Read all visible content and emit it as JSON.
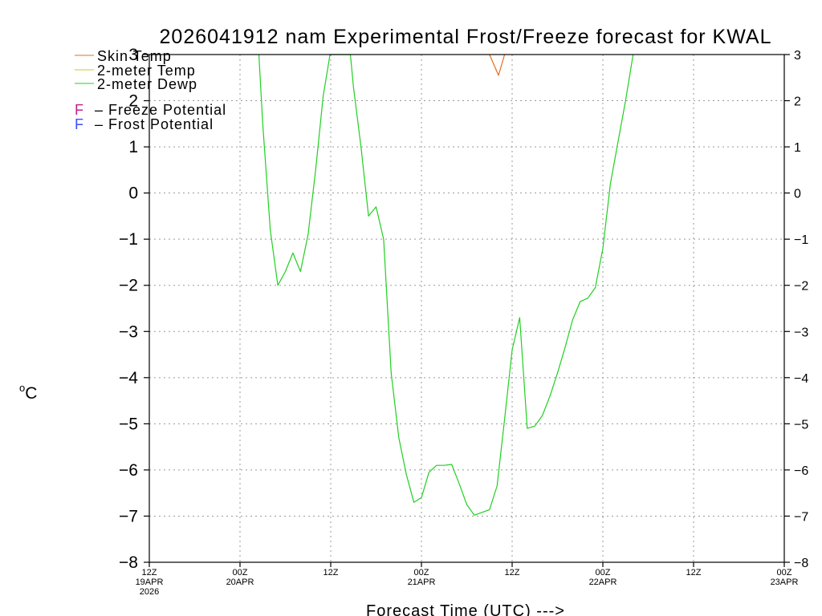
{
  "chart_data": {
    "type": "line",
    "title": "2026041912 nam Experimental Frost/Freeze forecast for KWAL",
    "xlabel": "Forecast Time (UTC) --->",
    "ylabel": "°C",
    "ylabel_unit": "C",
    "ylabel_degree": "o",
    "ylim": [
      -8,
      3
    ],
    "xlim": [
      0,
      84
    ],
    "y_ticks": [
      3,
      2,
      1,
      0,
      -1,
      -2,
      -3,
      -4,
      -5,
      -6,
      -7,
      -8
    ],
    "x_ticks": [
      {
        "h": 0,
        "l1": "12Z",
        "l2": "19APR",
        "l3": "2026"
      },
      {
        "h": 12,
        "l1": "00Z",
        "l2": "20APR",
        "l3": ""
      },
      {
        "h": 24,
        "l1": "12Z",
        "l2": "",
        "l3": ""
      },
      {
        "h": 36,
        "l1": "00Z",
        "l2": "21APR",
        "l3": ""
      },
      {
        "h": 48,
        "l1": "12Z",
        "l2": "",
        "l3": ""
      },
      {
        "h": 60,
        "l1": "00Z",
        "l2": "22APR",
        "l3": ""
      },
      {
        "h": 72,
        "l1": "12Z",
        "l2": "",
        "l3": ""
      },
      {
        "h": 84,
        "l1": "00Z",
        "l2": "23APR",
        "l3": ""
      }
    ],
    "grid": true,
    "legend": {
      "position": "top-left",
      "entries": [
        {
          "label": "Skin Temp",
          "color": "#e07020"
        },
        {
          "label": "2-meter Temp",
          "color": "#e0c020"
        },
        {
          "label": "2-meter Dewp",
          "color": "#20d020"
        }
      ],
      "markers": [
        {
          "symbol": "F",
          "label": "– Freeze Potential",
          "color": "#c02090"
        },
        {
          "symbol": "F",
          "label": "– Frost Potential",
          "color": "#4050f0"
        }
      ]
    },
    "series": [
      {
        "name": "Skin Temp",
        "color": "#e07020",
        "points": [
          [
            45,
            3.0
          ],
          [
            46.2,
            2.55
          ],
          [
            47,
            3.0
          ]
        ]
      },
      {
        "name": "2-meter Temp",
        "color": "#e0c020",
        "points": []
      },
      {
        "name": "2-meter Dewp",
        "color": "#20d020",
        "points": [
          [
            14.5,
            3.0
          ],
          [
            15,
            1.5
          ],
          [
            16,
            -0.8
          ],
          [
            17,
            -2.0
          ],
          [
            18,
            -1.7
          ],
          [
            19,
            -1.3
          ],
          [
            20,
            -1.7
          ],
          [
            21,
            -0.9
          ],
          [
            22,
            0.5
          ],
          [
            23,
            2.1
          ],
          [
            23.9,
            3.0
          ],
          [
            26.6,
            3.0
          ],
          [
            27,
            2.3
          ],
          [
            28,
            1.0
          ],
          [
            29,
            -0.5
          ],
          [
            30,
            -0.3
          ],
          [
            31,
            -1.0
          ],
          [
            32,
            -3.9
          ],
          [
            33,
            -5.3
          ],
          [
            34,
            -6.1
          ],
          [
            35,
            -6.7
          ],
          [
            36,
            -6.6
          ],
          [
            37,
            -6.05
          ],
          [
            38,
            -5.9
          ],
          [
            39,
            -5.9
          ],
          [
            40,
            -5.88
          ],
          [
            41,
            -6.3
          ],
          [
            42,
            -6.75
          ],
          [
            43,
            -6.98
          ],
          [
            44,
            -6.92
          ],
          [
            45,
            -6.86
          ],
          [
            46,
            -6.35
          ],
          [
            47,
            -4.9
          ],
          [
            48,
            -3.4
          ],
          [
            49,
            -2.7
          ],
          [
            50,
            -5.1
          ],
          [
            51,
            -5.05
          ],
          [
            52,
            -4.82
          ],
          [
            53,
            -4.4
          ],
          [
            54,
            -3.9
          ],
          [
            55,
            -3.35
          ],
          [
            56,
            -2.75
          ],
          [
            57,
            -2.35
          ],
          [
            58,
            -2.28
          ],
          [
            59,
            -2.05
          ],
          [
            60,
            -1.2
          ],
          [
            61,
            0.2
          ],
          [
            62,
            1.1
          ],
          [
            63,
            2.0
          ],
          [
            64,
            3.0
          ]
        ]
      }
    ]
  }
}
